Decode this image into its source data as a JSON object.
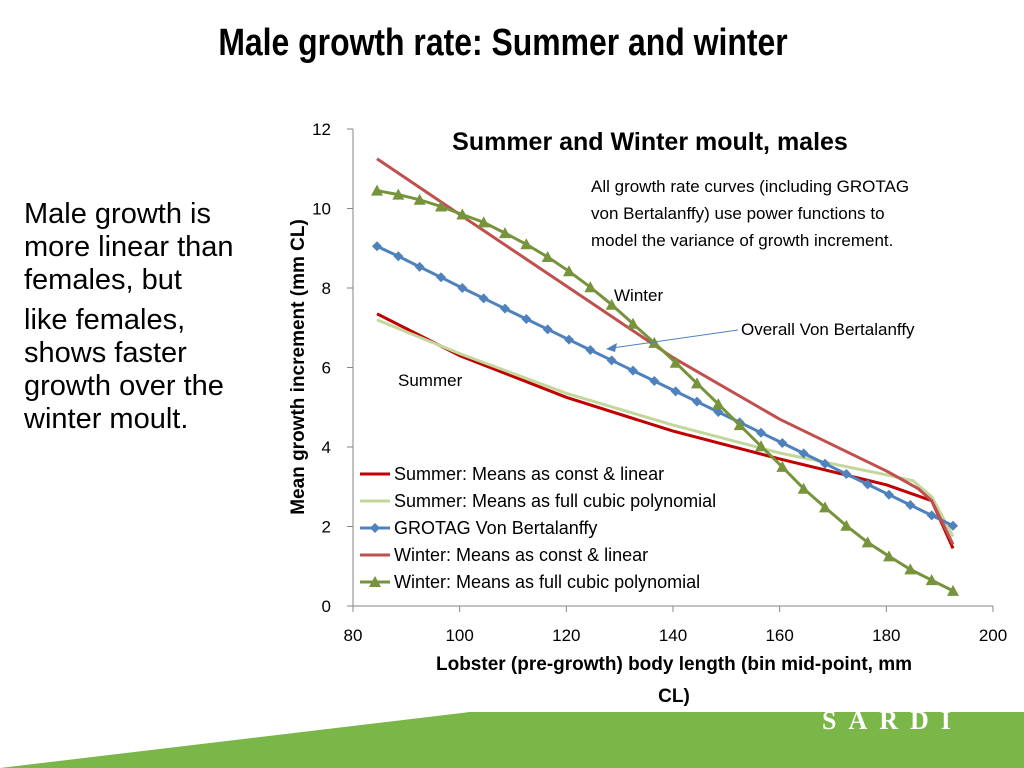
{
  "slide": {
    "title": "Male growth rate:  Summer and winter",
    "bullets": [
      "Male growth is more linear than females, but",
      "like females, shows faster growth over the winter moult."
    ],
    "logo_text": "SARDI",
    "footer_color": "#7ab648"
  },
  "chart_data": {
    "type": "line",
    "title": "Summer and Winter moult, males",
    "xlabel_lines": [
      "Lobster (pre-growth) body length (bin mid-point, mm",
      "CL)"
    ],
    "ylabel": "Mean growth increment (mm CL)",
    "xlim": [
      80,
      200
    ],
    "ylim": [
      0,
      12
    ],
    "xticks": [
      "80",
      "100",
      "120",
      "140",
      "160",
      "180",
      "200"
    ],
    "yticks": [
      "0",
      "2",
      "4",
      "6",
      "8",
      "10",
      "12"
    ],
    "grid": false,
    "legend_position": "bottom-left",
    "annotations": {
      "note_lines": [
        "All growth rate curves (including GROTAG",
        "von Bertalanffy) use power functions to",
        "model the variance of growth increment."
      ],
      "winter_label": "Winter",
      "summer_label": "Summer",
      "vb_label": "Overall Von Bertalanffy"
    },
    "series": [
      {
        "name": "Summer:  Means as const & linear",
        "color": "#c00000",
        "marker": "none",
        "x": [
          84.5,
          100,
          120,
          140,
          160,
          180,
          188.5,
          192.5
        ],
        "y": [
          7.35,
          6.3,
          5.25,
          4.4,
          3.7,
          3.05,
          2.65,
          1.45
        ]
      },
      {
        "name": "Summer: Means as full cubic polynomial",
        "color": "#c3d69b",
        "marker": "none",
        "x": [
          84.5,
          100,
          120,
          140,
          160,
          180,
          185,
          188.5,
          192.5
        ],
        "y": [
          7.2,
          6.35,
          5.35,
          4.55,
          3.85,
          3.3,
          3.15,
          2.75,
          1.75
        ]
      },
      {
        "name": "GROTAG Von Bertalanffy",
        "color": "#4f81bd",
        "marker": "diamond",
        "x": [
          84.5,
          88.5,
          92.5,
          96.5,
          100.5,
          104.5,
          108.5,
          112.5,
          116.5,
          120.5,
          124.5,
          128.5,
          132.5,
          136.5,
          140.5,
          144.5,
          148.5,
          152.5,
          156.5,
          160.5,
          164.5,
          168.5,
          172.5,
          176.5,
          180.5,
          184.5,
          188.5,
          192.5
        ],
        "y": [
          9.05,
          8.8,
          8.53,
          8.27,
          8.0,
          7.74,
          7.48,
          7.22,
          6.96,
          6.7,
          6.44,
          6.18,
          5.92,
          5.66,
          5.4,
          5.14,
          4.88,
          4.62,
          4.36,
          4.1,
          3.84,
          3.58,
          3.32,
          3.06,
          2.8,
          2.54,
          2.28,
          2.02
        ]
      },
      {
        "name": "Winter:  Means as const & linear",
        "color": "#c0504d",
        "marker": "none",
        "x": [
          84.5,
          100,
          120,
          140,
          160,
          180,
          186,
          188.5,
          192.5
        ],
        "y": [
          11.25,
          9.85,
          8.05,
          6.25,
          4.7,
          3.4,
          2.95,
          2.65,
          1.55
        ]
      },
      {
        "name": "Winter:  Means as full cubic polynomial",
        "color": "#77933c",
        "marker": "triangle",
        "x": [
          84.5,
          88.5,
          92.5,
          96.5,
          100.5,
          104.5,
          108.5,
          112.5,
          116.5,
          120.5,
          124.5,
          128.5,
          132.5,
          136.5,
          140.5,
          144.5,
          148.5,
          152.5,
          156.5,
          160.5,
          164.5,
          168.5,
          172.5,
          176.5,
          180.5,
          184.5,
          188.5,
          192.5
        ],
        "y": [
          10.45,
          10.35,
          10.22,
          10.05,
          9.85,
          9.65,
          9.38,
          9.1,
          8.78,
          8.42,
          8.02,
          7.58,
          7.1,
          6.62,
          6.12,
          5.6,
          5.08,
          4.55,
          4.02,
          3.5,
          2.95,
          2.48,
          2.02,
          1.6,
          1.25,
          0.92,
          0.65,
          0.38
        ]
      }
    ]
  }
}
